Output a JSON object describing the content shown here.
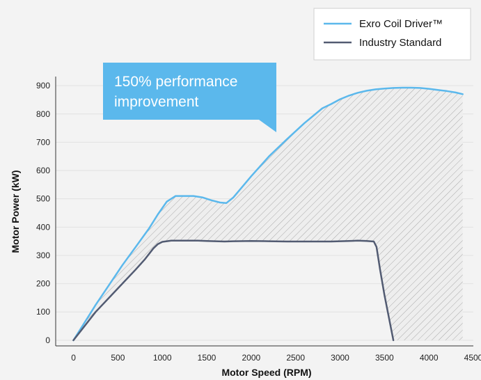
{
  "chart_data": {
    "type": "line",
    "xlabel": "Motor Speed (RPM)",
    "ylabel": "Motor Power (kW)",
    "xlim": [
      -200,
      4500
    ],
    "ylim": [
      -20,
      920
    ],
    "xticks": [
      0,
      500,
      1000,
      1500,
      2000,
      2500,
      3000,
      3500,
      4000,
      4500
    ],
    "yticks": [
      0,
      100,
      200,
      300,
      400,
      500,
      600,
      700,
      800,
      900
    ],
    "grid": true,
    "legend_position": "top-right",
    "series": [
      {
        "name": "Exro Coil Driver™",
        "color": "#5bb8ec",
        "x": [
          0,
          100,
          250,
          400,
          550,
          700,
          850,
          950,
          1050,
          1150,
          1250,
          1350,
          1450,
          1550,
          1650,
          1720,
          1800,
          2000,
          2200,
          2400,
          2600,
          2800,
          2900,
          3000,
          3100,
          3200,
          3300,
          3400,
          3500,
          3600,
          3700,
          3800,
          3900,
          4000,
          4100,
          4200,
          4300,
          4380
        ],
        "y": [
          0,
          50,
          125,
          195,
          265,
          330,
          395,
          445,
          490,
          510,
          510,
          510,
          505,
          495,
          487,
          485,
          505,
          580,
          650,
          710,
          768,
          820,
          835,
          852,
          865,
          875,
          882,
          887,
          890,
          892,
          893,
          893,
          892,
          889,
          885,
          881,
          876,
          870
        ]
      },
      {
        "name": "Industry Standard",
        "color": "#525b72",
        "x": [
          0,
          100,
          250,
          400,
          550,
          700,
          800,
          900,
          950,
          1000,
          1100,
          1200,
          1300,
          1400,
          1500,
          1600,
          1700,
          1800,
          2000,
          2200,
          2400,
          2600,
          2800,
          2900,
          3000,
          3100,
          3200,
          3300,
          3380,
          3410,
          3450,
          3500,
          3550,
          3600
        ],
        "y": [
          0,
          40,
          100,
          150,
          200,
          250,
          285,
          325,
          340,
          348,
          352,
          352,
          352,
          352,
          351,
          350,
          349,
          350,
          351,
          350,
          349,
          349,
          349,
          349,
          350,
          351,
          352,
          351,
          349,
          330,
          250,
          160,
          80,
          0
        ]
      }
    ],
    "annotation": "150% performance improvement",
    "callout_color": "#5bb8ec",
    "fill_pattern": "diagonal hatch"
  }
}
